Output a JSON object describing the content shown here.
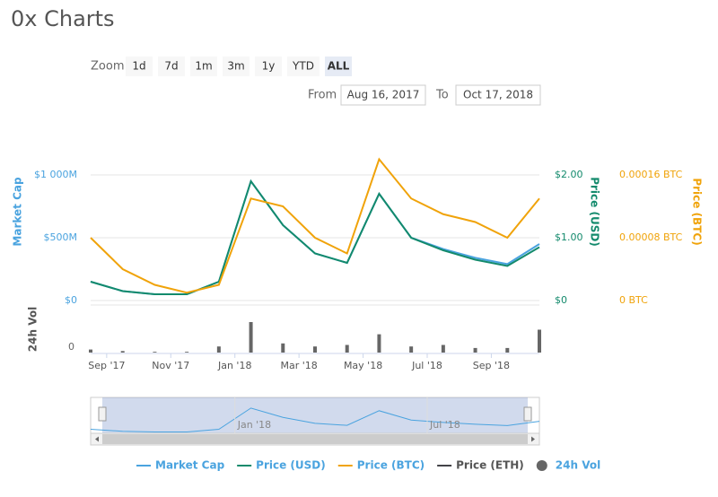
{
  "header": {
    "title": "0x Charts"
  },
  "zoom": {
    "label": "Zoom",
    "buttons": [
      "1d",
      "7d",
      "1m",
      "3m",
      "1y",
      "YTD",
      "ALL"
    ],
    "selected": 6
  },
  "range": {
    "from_label": "From",
    "from": "Aug 16, 2017",
    "to_label": "To",
    "to": "Oct 17, 2018"
  },
  "chart_data": {
    "type": "line",
    "x": [
      "2017-08",
      "2017-09",
      "2017-10",
      "2017-11",
      "2017-12",
      "2018-01",
      "2018-02",
      "2018-03",
      "2018-04",
      "2018-05",
      "2018-06",
      "2018-07",
      "2018-08",
      "2018-09",
      "2018-10"
    ],
    "xlim": [
      "2017-08",
      "2018-10"
    ],
    "xticks": [
      {
        "value": "2017-09",
        "label": "Sep '17"
      },
      {
        "value": "2017-11",
        "label": "Nov '17"
      },
      {
        "value": "2018-01",
        "label": "Jan '18"
      },
      {
        "value": "2018-03",
        "label": "Mar '18"
      },
      {
        "value": "2018-05",
        "label": "May '18"
      },
      {
        "value": "2018-07",
        "label": "Jul '18"
      },
      {
        "value": "2018-09",
        "label": "Sep '18"
      }
    ],
    "y_label": "Market Cap",
    "ylim": [
      0,
      1250000000
    ],
    "yticks": [
      {
        "value": 0,
        "label": "$0"
      },
      {
        "value": 500000000,
        "label": "$500M"
      },
      {
        "value": 1000000000,
        "label": "$1 000M"
      }
    ],
    "y2_label": "Price (USD)",
    "y2lim": [
      0,
      2.5
    ],
    "y2ticks": [
      {
        "value": 0,
        "label": "$0"
      },
      {
        "value": 1,
        "label": "$1.00"
      },
      {
        "value": 2,
        "label": "$2.00"
      }
    ],
    "y3_label": "Price (BTC)",
    "y3lim": [
      0,
      0.0002
    ],
    "y3ticks": [
      {
        "value": 0,
        "label": "0 BTC"
      },
      {
        "value": 8e-05,
        "label": "0.00008 BTC"
      },
      {
        "value": 0.00016,
        "label": "0.00016 BTC"
      }
    ],
    "volume": {
      "label": "24h Vol",
      "ylim": [
        0,
        300000000
      ],
      "yticks": [
        0
      ]
    },
    "navigator": {
      "xticks": [
        {
          "value": "2018-01",
          "label": "Jan '18"
        },
        {
          "value": "2018-07",
          "label": "Jul '18"
        }
      ]
    },
    "grid": true,
    "series": [
      {
        "name": "Market Cap",
        "color": "#4aa3df",
        "axis": "y",
        "values": [
          150000000,
          75000000,
          50000000,
          50000000,
          150000000,
          950000000,
          600000000,
          375000000,
          300000000,
          850000000,
          500000000,
          410000000,
          340000000,
          290000000,
          450000000
        ]
      },
      {
        "name": "Price (USD)",
        "color": "#138a6c",
        "axis": "y2",
        "values": [
          0.3,
          0.15,
          0.1,
          0.1,
          0.3,
          1.9,
          1.2,
          0.75,
          0.6,
          1.7,
          1.0,
          0.8,
          0.65,
          0.55,
          0.85
        ]
      },
      {
        "name": "Price (BTC)",
        "color": "#f0a30a",
        "axis": "y3",
        "values": [
          8e-05,
          4e-05,
          2e-05,
          1e-05,
          2e-05,
          0.00013,
          0.00012,
          8e-05,
          6e-05,
          0.00018,
          0.00013,
          0.00011,
          0.0001,
          8e-05,
          0.00013
        ]
      },
      {
        "name": "Price (ETH)",
        "color": "#434348",
        "hidden": true
      },
      {
        "name": "24h Vol",
        "color": "#666666",
        "type": "column",
        "axis": "volume",
        "values": [
          20000000,
          10000000,
          5000000,
          5000000,
          40000000,
          200000000,
          60000000,
          40000000,
          50000000,
          120000000,
          40000000,
          50000000,
          30000000,
          30000000,
          150000000
        ]
      }
    ]
  }
}
